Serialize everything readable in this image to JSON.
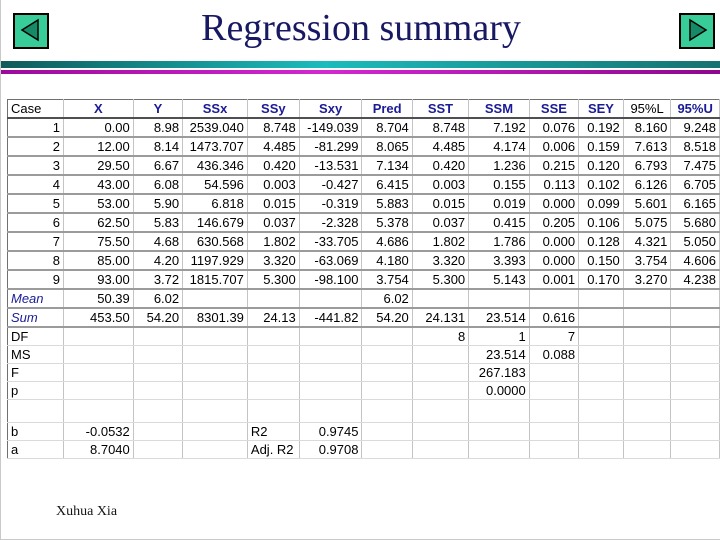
{
  "title": "Regression summary",
  "nav": {
    "prev_icon": "left-arrow",
    "next_icon": "right-arrow"
  },
  "colors": {
    "header_navy": "#1b1b96",
    "title_color": "#181863",
    "button_bg": "#38cc98",
    "button_triangle": "#168a66",
    "teal_bar_mid": "#1bbcbc",
    "magenta_bar_mid": "#d228d2"
  },
  "footer": {
    "author": "Xuhua Xia"
  },
  "table": {
    "columns": [
      "Case",
      "X",
      "Y",
      "SSx",
      "SSy",
      "Sxy",
      "Pred",
      "SST",
      "SSM",
      "SSE",
      "SEY",
      "95%L",
      "95%U"
    ],
    "header_styles": [
      "plain",
      "navy",
      "navy",
      "navy",
      "navy",
      "navy",
      "navy",
      "navy",
      "navy",
      "navy",
      "navy",
      "plain",
      "navy"
    ],
    "rows": [
      {
        "style": "data",
        "border": "thick",
        "cells": [
          "1",
          "0.00",
          "8.98",
          "2539.040",
          "8.748",
          "-149.039",
          "8.704",
          "8.748",
          "7.192",
          "0.076",
          "0.192",
          "8.160",
          "9.248"
        ]
      },
      {
        "style": "data",
        "border": "thick",
        "cells": [
          "2",
          "12.00",
          "8.14",
          "1473.707",
          "4.485",
          "-81.299",
          "8.065",
          "4.485",
          "4.174",
          "0.006",
          "0.159",
          "7.613",
          "8.518"
        ]
      },
      {
        "style": "data",
        "border": "thick",
        "cells": [
          "3",
          "29.50",
          "6.67",
          "436.346",
          "0.420",
          "-13.531",
          "7.134",
          "0.420",
          "1.236",
          "0.215",
          "0.120",
          "6.793",
          "7.475"
        ]
      },
      {
        "style": "data",
        "border": "thick",
        "cells": [
          "4",
          "43.00",
          "6.08",
          "54.596",
          "0.003",
          "-0.427",
          "6.415",
          "0.003",
          "0.155",
          "0.113",
          "0.102",
          "6.126",
          "6.705"
        ]
      },
      {
        "style": "data",
        "border": "thick",
        "cells": [
          "5",
          "53.00",
          "5.90",
          "6.818",
          "0.015",
          "-0.319",
          "5.883",
          "0.015",
          "0.019",
          "0.000",
          "0.099",
          "5.601",
          "6.165"
        ]
      },
      {
        "style": "data",
        "border": "thick",
        "cells": [
          "6",
          "62.50",
          "5.83",
          "146.679",
          "0.037",
          "-2.328",
          "5.378",
          "0.037",
          "0.415",
          "0.205",
          "0.106",
          "5.075",
          "5.680"
        ]
      },
      {
        "style": "data",
        "border": "thick",
        "cells": [
          "7",
          "75.50",
          "4.68",
          "630.568",
          "1.802",
          "-33.705",
          "4.686",
          "1.802",
          "1.786",
          "0.000",
          "0.128",
          "4.321",
          "5.050"
        ]
      },
      {
        "style": "data",
        "border": "thick",
        "cells": [
          "8",
          "85.00",
          "4.20",
          "1197.929",
          "3.320",
          "-63.069",
          "4.180",
          "3.320",
          "3.393",
          "0.000",
          "0.150",
          "3.754",
          "4.606"
        ]
      },
      {
        "style": "data",
        "border": "thick",
        "cells": [
          "9",
          "93.00",
          "3.72",
          "1815.707",
          "5.300",
          "-98.100",
          "3.754",
          "5.300",
          "5.143",
          "0.001",
          "0.170",
          "3.270",
          "4.238"
        ]
      },
      {
        "style": "navy",
        "border": "thick",
        "cells": [
          "Mean",
          "50.39",
          "6.02",
          "",
          "",
          "",
          "6.02",
          "",
          "",
          "",
          "",
          "",
          ""
        ]
      },
      {
        "style": "navy",
        "border": "thick",
        "cells": [
          "Sum",
          "453.50",
          "54.20",
          "8301.39",
          "24.13",
          "-441.82",
          "54.20",
          "24.131",
          "23.514",
          "0.616",
          "",
          "",
          ""
        ]
      },
      {
        "style": "plain",
        "border": "thin",
        "cells": [
          "DF",
          "",
          "",
          "",
          "",
          "",
          "",
          "8",
          "1",
          "7",
          "",
          "",
          ""
        ]
      },
      {
        "style": "plain",
        "border": "thin",
        "cells": [
          "MS",
          "",
          "",
          "",
          "",
          "",
          "",
          "",
          "23.514",
          "0.088",
          "",
          "",
          ""
        ]
      },
      {
        "style": "plain",
        "border": "thin",
        "cells": [
          "F",
          "",
          "",
          "",
          "",
          "",
          "",
          "",
          "267.183",
          "",
          "",
          "",
          ""
        ]
      },
      {
        "style": "plain",
        "border": "thin",
        "cells": [
          "p",
          "",
          "",
          "",
          "",
          "",
          "",
          "",
          "0.0000",
          "",
          "",
          "",
          ""
        ]
      },
      {
        "style": "plain",
        "border": "thin",
        "tall": true,
        "cells": [
          "",
          "",
          "",
          "",
          "",
          "",
          "",
          "",
          "",
          "",
          "",
          "",
          ""
        ]
      },
      {
        "style": "plain",
        "border": "thin",
        "cells": [
          "b",
          "-0.0532",
          "",
          "",
          "R2",
          "0.9745",
          "",
          "",
          "",
          "",
          "",
          "",
          ""
        ]
      },
      {
        "style": "plain",
        "border": "thin",
        "cells": [
          "a",
          "8.7040",
          "",
          "",
          "Adj. R2",
          "0.9708",
          "",
          "",
          "",
          "",
          "",
          "",
          ""
        ]
      }
    ]
  }
}
